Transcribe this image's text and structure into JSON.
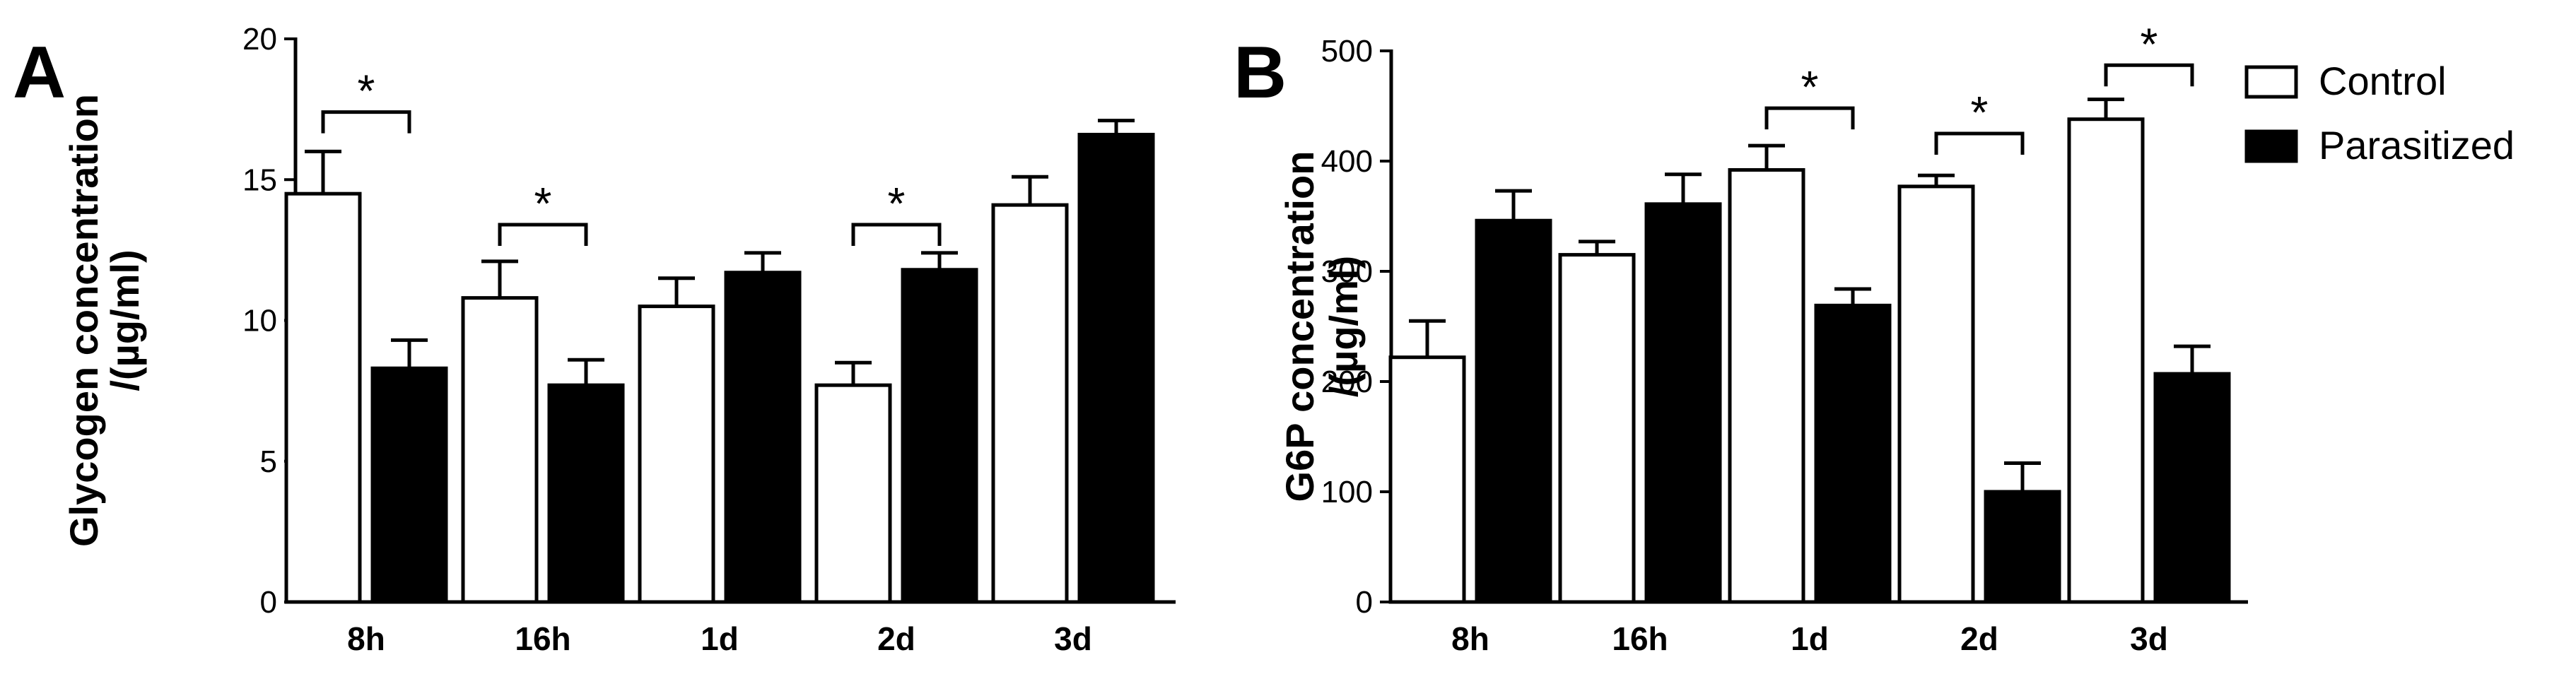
{
  "chart_data": [
    {
      "panel": "A",
      "type": "bar",
      "ylabel_lines": [
        "Glycogen concentration",
        "/(µg/ml)"
      ],
      "categories": [
        "8h",
        "16h",
        "1d",
        "2d",
        "3d"
      ],
      "ylim": [
        0,
        20
      ],
      "yticks": [
        0,
        5,
        10,
        15,
        20
      ],
      "series": [
        {
          "name": "Control",
          "fill": "#ffffff",
          "values": [
            14.5,
            10.8,
            10.5,
            7.7,
            14.1
          ],
          "errors": [
            1.5,
            1.3,
            1.0,
            0.8,
            1.0
          ]
        },
        {
          "name": "Parasitized",
          "fill": "#000000",
          "values": [
            8.3,
            7.7,
            11.7,
            11.8,
            16.6
          ],
          "errors": [
            1.0,
            0.9,
            0.7,
            0.6,
            0.5
          ]
        }
      ],
      "significance": [
        {
          "category": "8h",
          "label": "*",
          "bracket_y": 17.4
        },
        {
          "category": "16h",
          "label": "*",
          "bracket_y": 13.4
        },
        {
          "category": "2d",
          "label": "*",
          "bracket_y": 13.4
        }
      ]
    },
    {
      "panel": "B",
      "type": "bar",
      "ylabel_lines": [
        "G6P concentration",
        "/(µg/ml)"
      ],
      "categories": [
        "8h",
        "16h",
        "1d",
        "2d",
        "3d"
      ],
      "ylim": [
        0,
        500
      ],
      "yticks": [
        0,
        100,
        200,
        300,
        400,
        500
      ],
      "series": [
        {
          "name": "Control",
          "fill": "#ffffff",
          "values": [
            222,
            315,
            392,
            377,
            438
          ],
          "errors": [
            33,
            12,
            22,
            10,
            18
          ]
        },
        {
          "name": "Parasitized",
          "fill": "#000000",
          "values": [
            346,
            361,
            269,
            100,
            207
          ],
          "errors": [
            27,
            27,
            15,
            26,
            25
          ]
        }
      ],
      "significance": [
        {
          "category": "1d",
          "label": "*",
          "bracket_y": 448
        },
        {
          "category": "2d",
          "label": "*",
          "bracket_y": 425
        },
        {
          "category": "3d",
          "label": "*",
          "bracket_y": 487
        }
      ]
    }
  ],
  "legend": [
    {
      "label": "Control",
      "fill": "#ffffff"
    },
    {
      "label": "Parasitized",
      "fill": "#000000"
    }
  ]
}
